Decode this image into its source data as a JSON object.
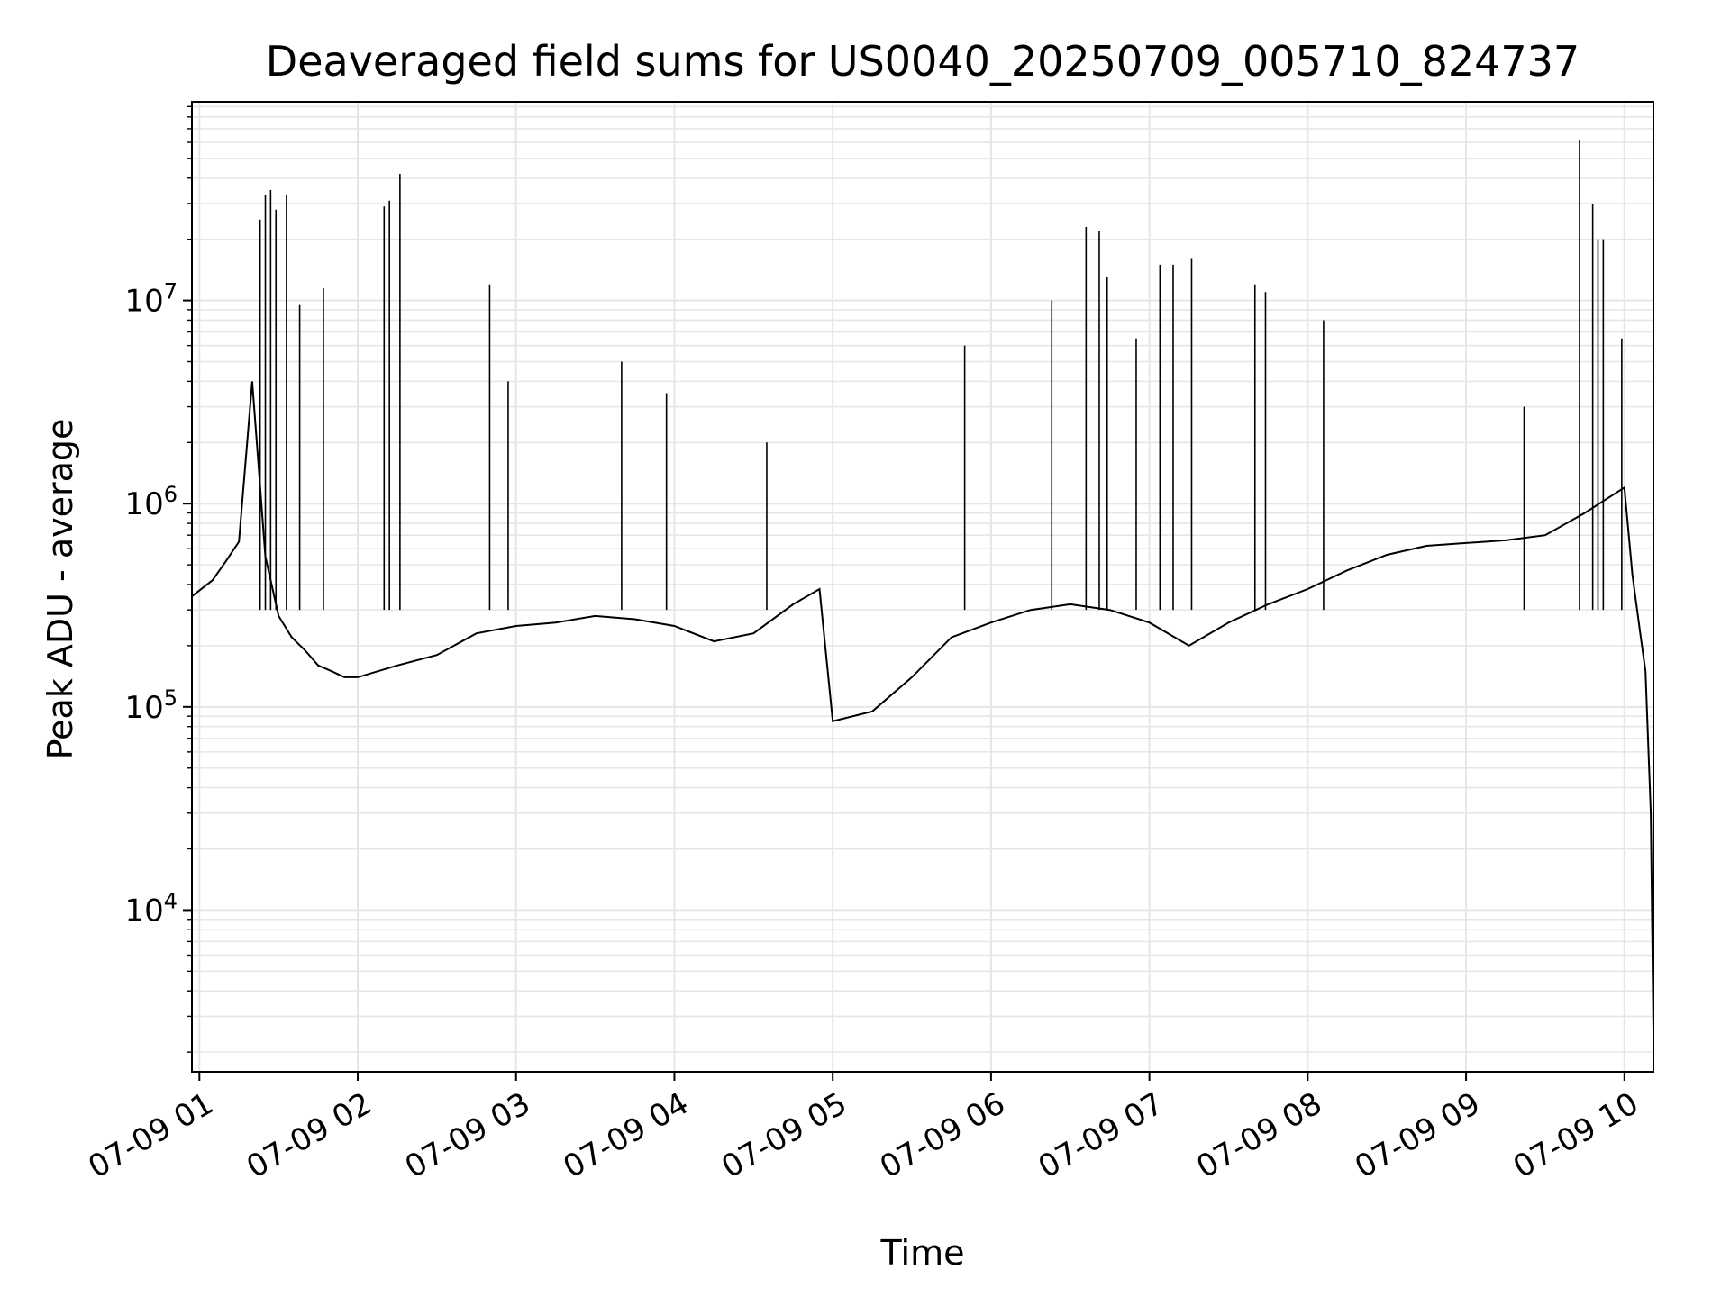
{
  "chart_data": {
    "type": "line",
    "title": "Deaveraged field sums for US0040_20250709_005710_824737",
    "xlabel": "Time",
    "ylabel": "Peak ADU - average",
    "yscale": "log",
    "ylim": [
      1600,
      95000000
    ],
    "xlim": [
      "2025-07-09 00:57:10",
      "2025-07-09 10:11:00"
    ],
    "x_ticks": [
      {
        "t": "2025-07-09 01:00",
        "label": "07-09 01"
      },
      {
        "t": "2025-07-09 02:00",
        "label": "07-09 02"
      },
      {
        "t": "2025-07-09 03:00",
        "label": "07-09 03"
      },
      {
        "t": "2025-07-09 04:00",
        "label": "07-09 04"
      },
      {
        "t": "2025-07-09 05:00",
        "label": "07-09 05"
      },
      {
        "t": "2025-07-09 06:00",
        "label": "07-09 06"
      },
      {
        "t": "2025-07-09 07:00",
        "label": "07-09 07"
      },
      {
        "t": "2025-07-09 08:00",
        "label": "07-09 08"
      },
      {
        "t": "2025-07-09 09:00",
        "label": "07-09 09"
      },
      {
        "t": "2025-07-09 10:00",
        "label": "07-09 10"
      }
    ],
    "y_ticks": [
      {
        "v": 10000,
        "base": "10",
        "exp": "4"
      },
      {
        "v": 100000,
        "base": "10",
        "exp": "5"
      },
      {
        "v": 1000000,
        "base": "10",
        "exp": "6"
      },
      {
        "v": 10000000,
        "base": "10",
        "exp": "7"
      }
    ],
    "grid": "major and minor",
    "line_color": "#000000",
    "grid_color": "#e6e6e6",
    "series": [
      {
        "x": [
          "2025-07-09 00:57:10",
          "2025-07-09 01:05",
          "2025-07-09 01:10",
          "2025-07-09 01:15",
          "2025-07-09 01:20",
          "2025-07-09 01:25",
          "2025-07-09 01:30",
          "2025-07-09 01:35",
          "2025-07-09 01:40",
          "2025-07-09 01:45",
          "2025-07-09 01:50",
          "2025-07-09 01:55",
          "2025-07-09 02:00",
          "2025-07-09 02:15",
          "2025-07-09 02:30",
          "2025-07-09 02:45",
          "2025-07-09 03:00",
          "2025-07-09 03:15",
          "2025-07-09 03:30",
          "2025-07-09 03:45",
          "2025-07-09 04:00",
          "2025-07-09 04:15",
          "2025-07-09 04:30",
          "2025-07-09 04:45",
          "2025-07-09 04:55",
          "2025-07-09 05:00",
          "2025-07-09 05:15",
          "2025-07-09 05:30",
          "2025-07-09 05:45",
          "2025-07-09 06:00",
          "2025-07-09 06:15",
          "2025-07-09 06:30",
          "2025-07-09 06:45",
          "2025-07-09 07:00",
          "2025-07-09 07:15",
          "2025-07-09 07:30",
          "2025-07-09 07:45",
          "2025-07-09 08:00",
          "2025-07-09 08:15",
          "2025-07-09 08:30",
          "2025-07-09 08:45",
          "2025-07-09 09:00",
          "2025-07-09 09:15",
          "2025-07-09 09:30",
          "2025-07-09 09:45",
          "2025-07-09 10:00",
          "2025-07-09 10:03",
          "2025-07-09 10:06",
          "2025-07-09 10:08",
          "2025-07-09 10:10",
          "2025-07-09 10:11"
        ],
        "y": [
          350000,
          420000,
          520000,
          650000,
          4000000,
          550000,
          280000,
          220000,
          190000,
          160000,
          150000,
          140000,
          140000,
          160000,
          180000,
          230000,
          250000,
          260000,
          280000,
          270000,
          250000,
          210000,
          230000,
          320000,
          380000,
          85000,
          95000,
          140000,
          220000,
          260000,
          300000,
          320000,
          300000,
          260000,
          200000,
          260000,
          320000,
          380000,
          470000,
          560000,
          620000,
          640000,
          660000,
          700000,
          900000,
          1200000,
          450000,
          230000,
          150000,
          30000,
          2500
        ],
        "spikes": [
          {
            "t": "2025-07-09 01:23",
            "v": 25000000
          },
          {
            "t": "2025-07-09 01:25",
            "v": 33000000
          },
          {
            "t": "2025-07-09 01:27",
            "v": 35000000
          },
          {
            "t": "2025-07-09 01:29",
            "v": 28000000
          },
          {
            "t": "2025-07-09 01:33",
            "v": 33000000
          },
          {
            "t": "2025-07-09 01:38",
            "v": 9500000
          },
          {
            "t": "2025-07-09 01:47",
            "v": 11500000
          },
          {
            "t": "2025-07-09 02:10",
            "v": 29000000
          },
          {
            "t": "2025-07-09 02:12",
            "v": 31000000
          },
          {
            "t": "2025-07-09 02:16",
            "v": 42000000
          },
          {
            "t": "2025-07-09 02:50",
            "v": 12000000
          },
          {
            "t": "2025-07-09 02:57",
            "v": 4000000
          },
          {
            "t": "2025-07-09 03:40",
            "v": 5000000
          },
          {
            "t": "2025-07-09 03:57",
            "v": 3500000
          },
          {
            "t": "2025-07-09 04:35",
            "v": 2000000
          },
          {
            "t": "2025-07-09 05:50",
            "v": 6000000
          },
          {
            "t": "2025-07-09 06:23",
            "v": 10000000
          },
          {
            "t": "2025-07-09 06:36",
            "v": 23000000
          },
          {
            "t": "2025-07-09 06:41",
            "v": 22000000
          },
          {
            "t": "2025-07-09 06:44",
            "v": 13000000
          },
          {
            "t": "2025-07-09 06:55",
            "v": 6500000
          },
          {
            "t": "2025-07-09 07:04",
            "v": 15000000
          },
          {
            "t": "2025-07-09 07:09",
            "v": 15000000
          },
          {
            "t": "2025-07-09 07:16",
            "v": 16000000
          },
          {
            "t": "2025-07-09 07:40",
            "v": 12000000
          },
          {
            "t": "2025-07-09 07:44",
            "v": 11000000
          },
          {
            "t": "2025-07-09 08:06",
            "v": 8000000
          },
          {
            "t": "2025-07-09 09:22",
            "v": 3000000
          },
          {
            "t": "2025-07-09 09:43",
            "v": 62000000
          },
          {
            "t": "2025-07-09 09:48",
            "v": 30000000
          },
          {
            "t": "2025-07-09 09:50",
            "v": 20000000
          },
          {
            "t": "2025-07-09 09:52",
            "v": 20000000
          },
          {
            "t": "2025-07-09 09:59",
            "v": 6500000
          }
        ]
      }
    ]
  }
}
